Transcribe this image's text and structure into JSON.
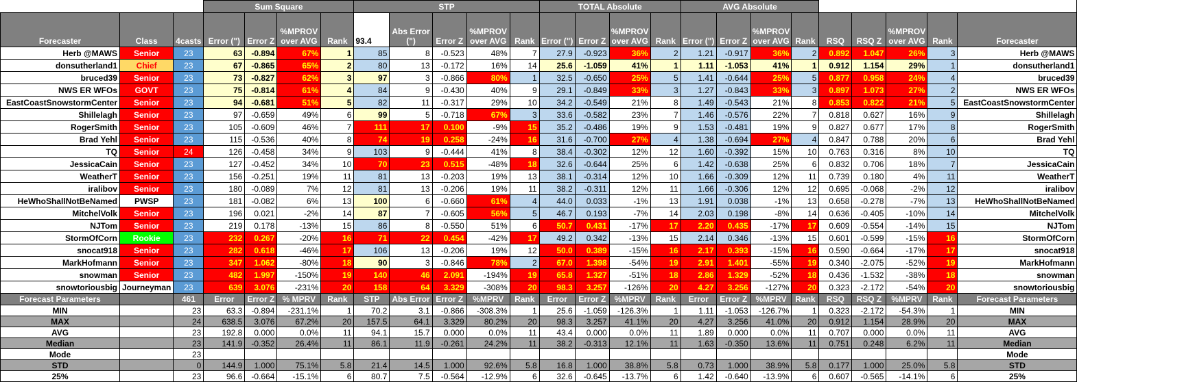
{
  "groups": {
    "sum_square": "Sum Square",
    "stp": "STP",
    "total_abs": "TOTAL Absolute",
    "avg_abs": "AVG Absolute"
  },
  "headers": {
    "forecaster": "Forecaster",
    "class": "Class",
    "casts": "4casts",
    "error": "Error (\")",
    "error_z": "Error Z",
    "mprov": "%MPROV over AVG",
    "rank": "Rank",
    "stp_value": "93.4",
    "abs_error": "Abs Error (\")",
    "rsq": "RSQ",
    "rsq_z": "RSQ Z"
  },
  "rows": [
    {
      "name": "Herb @MAWS",
      "cls": "Senior",
      "ct": "23",
      "ss": [
        "63",
        "-0.894",
        "67%",
        "1"
      ],
      "stp": [
        "85",
        "8",
        "-0.523",
        "48%",
        "7"
      ],
      "ta": [
        "27.9",
        "-0.923",
        "36%",
        "2"
      ],
      "aa": [
        "1.21",
        "-0.917",
        "36%",
        "2"
      ],
      "rs": [
        "0.892",
        "1.047",
        "26%",
        "3"
      ]
    },
    {
      "name": "donsutherland1",
      "cls": "Chief",
      "ct": "23",
      "ss": [
        "67",
        "-0.865",
        "65%",
        "2"
      ],
      "stp": [
        "80",
        "13",
        "-0.172",
        "16%",
        "14"
      ],
      "ta": [
        "25.6",
        "-1.059",
        "41%",
        "1"
      ],
      "aa": [
        "1.11",
        "-1.053",
        "41%",
        "1"
      ],
      "rs": [
        "0.912",
        "1.154",
        "29%",
        "1"
      ]
    },
    {
      "name": "bruced39",
      "cls": "Senior",
      "ct": "23",
      "ss": [
        "73",
        "-0.827",
        "62%",
        "3"
      ],
      "stp": [
        "97",
        "3",
        "-0.866",
        "80%",
        "1"
      ],
      "ta": [
        "32.5",
        "-0.650",
        "25%",
        "5"
      ],
      "aa": [
        "1.41",
        "-0.644",
        "25%",
        "5"
      ],
      "rs": [
        "0.877",
        "0.958",
        "24%",
        "4"
      ]
    },
    {
      "name": "NWS ER WFOs",
      "cls": "GOVT",
      "ct": "23",
      "ss": [
        "75",
        "-0.814",
        "61%",
        "4"
      ],
      "stp": [
        "84",
        "9",
        "-0.430",
        "40%",
        "9"
      ],
      "ta": [
        "29.1",
        "-0.849",
        "33%",
        "3"
      ],
      "aa": [
        "1.27",
        "-0.843",
        "33%",
        "3"
      ],
      "rs": [
        "0.897",
        "1.073",
        "27%",
        "2"
      ]
    },
    {
      "name": "EastCoastSnowstormCenter",
      "cls": "Senior",
      "ct": "23",
      "ss": [
        "94",
        "-0.681",
        "51%",
        "5"
      ],
      "stp": [
        "82",
        "11",
        "-0.317",
        "29%",
        "10"
      ],
      "ta": [
        "34.2",
        "-0.549",
        "21%",
        "8"
      ],
      "aa": [
        "1.49",
        "-0.543",
        "21%",
        "8"
      ],
      "rs": [
        "0.853",
        "0.822",
        "21%",
        "5"
      ]
    },
    {
      "name": "Shillelagh",
      "cls": "Senior",
      "ct": "23",
      "ss": [
        "97",
        "-0.659",
        "49%",
        "6"
      ],
      "stp": [
        "99",
        "5",
        "-0.718",
        "67%",
        "3"
      ],
      "ta": [
        "33.6",
        "-0.582",
        "23%",
        "7"
      ],
      "aa": [
        "1.46",
        "-0.576",
        "22%",
        "7"
      ],
      "rs": [
        "0.818",
        "0.627",
        "16%",
        "9"
      ]
    },
    {
      "name": "RogerSmith",
      "cls": "Senior",
      "ct": "23",
      "ss": [
        "105",
        "-0.609",
        "46%",
        "7"
      ],
      "stp": [
        "111",
        "17",
        "0.100",
        "-9%",
        "15"
      ],
      "ta": [
        "35.2",
        "-0.486",
        "19%",
        "9"
      ],
      "aa": [
        "1.53",
        "-0.481",
        "19%",
        "9"
      ],
      "rs": [
        "0.827",
        "0.677",
        "17%",
        "8"
      ]
    },
    {
      "name": "Brad Yehl",
      "cls": "Senior",
      "ct": "23",
      "ss": [
        "115",
        "-0.536",
        "40%",
        "8"
      ],
      "stp": [
        "74",
        "19",
        "0.258",
        "-24%",
        "16"
      ],
      "ta": [
        "31.6",
        "-0.700",
        "27%",
        "4"
      ],
      "aa": [
        "1.38",
        "-0.694",
        "27%",
        "4"
      ],
      "rs": [
        "0.847",
        "0.788",
        "20%",
        "6"
      ]
    },
    {
      "name": "TQ",
      "cls": "Senior",
      "ct": "24",
      "ss": [
        "126",
        "-0.458",
        "34%",
        "9"
      ],
      "stp": [
        "103",
        "9",
        "-0.444",
        "41%",
        "8"
      ],
      "ta": [
        "38.4",
        "-0.302",
        "12%",
        "12"
      ],
      "aa": [
        "1.60",
        "-0.392",
        "15%",
        "10"
      ],
      "rs": [
        "0.763",
        "0.316",
        "8%",
        "10"
      ]
    },
    {
      "name": "JessicaCain",
      "cls": "Senior",
      "ct": "23",
      "ss": [
        "127",
        "-0.452",
        "34%",
        "10"
      ],
      "stp": [
        "70",
        "23",
        "0.515",
        "-48%",
        "18"
      ],
      "ta": [
        "32.6",
        "-0.644",
        "25%",
        "6"
      ],
      "aa": [
        "1.42",
        "-0.638",
        "25%",
        "6"
      ],
      "rs": [
        "0.832",
        "0.706",
        "18%",
        "7"
      ]
    },
    {
      "name": "WeatherT",
      "cls": "Senior",
      "ct": "23",
      "ss": [
        "156",
        "-0.251",
        "19%",
        "11"
      ],
      "stp": [
        "81",
        "13",
        "-0.203",
        "19%",
        "13"
      ],
      "ta": [
        "38.1",
        "-0.314",
        "12%",
        "10"
      ],
      "aa": [
        "1.66",
        "-0.309",
        "12%",
        "11"
      ],
      "rs": [
        "0.739",
        "0.180",
        "4%",
        "11"
      ]
    },
    {
      "name": "iralibov",
      "cls": "Senior",
      "ct": "23",
      "ss": [
        "180",
        "-0.089",
        "7%",
        "12"
      ],
      "stp": [
        "81",
        "13",
        "-0.206",
        "19%",
        "11"
      ],
      "ta": [
        "38.2",
        "-0.311",
        "12%",
        "11"
      ],
      "aa": [
        "1.66",
        "-0.306",
        "12%",
        "12"
      ],
      "rs": [
        "0.695",
        "-0.068",
        "-2%",
        "12"
      ]
    },
    {
      "name": "HeWhoShallNotBeNamed",
      "cls": "PWSP",
      "ct": "23",
      "ss": [
        "181",
        "-0.082",
        "6%",
        "13"
      ],
      "stp": [
        "100",
        "6",
        "-0.660",
        "61%",
        "4"
      ],
      "ta": [
        "44.0",
        "0.033",
        "-1%",
        "13"
      ],
      "aa": [
        "1.91",
        "0.038",
        "-1%",
        "13"
      ],
      "rs": [
        "0.658",
        "-0.278",
        "-7%",
        "13"
      ]
    },
    {
      "name": "MitchelVolk",
      "cls": "Senior",
      "ct": "23",
      "ss": [
        "196",
        "0.021",
        "-2%",
        "14"
      ],
      "stp": [
        "87",
        "7",
        "-0.605",
        "56%",
        "5"
      ],
      "ta": [
        "46.7",
        "0.193",
        "-7%",
        "14"
      ],
      "aa": [
        "2.03",
        "0.198",
        "-8%",
        "14"
      ],
      "rs": [
        "0.636",
        "-0.405",
        "-10%",
        "14"
      ]
    },
    {
      "name": "NJTom",
      "cls": "Senior",
      "ct": "23",
      "ss": [
        "219",
        "0.178",
        "-13%",
        "15"
      ],
      "stp": [
        "86",
        "8",
        "-0.550",
        "51%",
        "6"
      ],
      "ta": [
        "50.7",
        "0.431",
        "-17%",
        "17"
      ],
      "aa": [
        "2.20",
        "0.435",
        "-17%",
        "17"
      ],
      "rs": [
        "0.609",
        "-0.554",
        "-14%",
        "15"
      ]
    },
    {
      "name": "StormOfCorn",
      "cls": "Rookie",
      "ct": "23",
      "ss": [
        "232",
        "0.267",
        "-20%",
        "16"
      ],
      "stp": [
        "71",
        "22",
        "0.454",
        "-42%",
        "17"
      ],
      "ta": [
        "49.2",
        "0.342",
        "-13%",
        "15"
      ],
      "aa": [
        "2.14",
        "0.346",
        "-13%",
        "15"
      ],
      "rs": [
        "0.601",
        "-0.599",
        "-15%",
        "16"
      ]
    },
    {
      "name": "snocat918",
      "cls": "Senior",
      "ct": "23",
      "ss": [
        "282",
        "0.618",
        "-46%",
        "17"
      ],
      "stp": [
        "106",
        "13",
        "-0.206",
        "19%",
        "12"
      ],
      "ta": [
        "50.0",
        "0.389",
        "-15%",
        "16"
      ],
      "aa": [
        "2.17",
        "0.393",
        "-15%",
        "16"
      ],
      "rs": [
        "0.590",
        "-0.664",
        "-17%",
        "17"
      ]
    },
    {
      "name": "MarkHofmann",
      "cls": "Senior",
      "ct": "23",
      "ss": [
        "347",
        "1.062",
        "-80%",
        "18"
      ],
      "stp": [
        "90",
        "3",
        "-0.846",
        "78%",
        "2"
      ],
      "ta": [
        "67.0",
        "1.398",
        "-54%",
        "19"
      ],
      "aa": [
        "2.91",
        "1.401",
        "-55%",
        "19"
      ],
      "rs": [
        "0.340",
        "-2.075",
        "-52%",
        "19"
      ]
    },
    {
      "name": "snowman",
      "cls": "Senior",
      "ct": "23",
      "ss": [
        "482",
        "1.997",
        "-150%",
        "19"
      ],
      "stp": [
        "140",
        "46",
        "2.091",
        "-194%",
        "19"
      ],
      "ta": [
        "65.8",
        "1.327",
        "-51%",
        "18"
      ],
      "aa": [
        "2.86",
        "1.329",
        "-52%",
        "18"
      ],
      "rs": [
        "0.436",
        "-1.532",
        "-38%",
        "18"
      ]
    },
    {
      "name": "snowtoriousbig",
      "cls": "Journeyman",
      "ct": "23",
      "ss": [
        "639",
        "3.076",
        "-231%",
        "20"
      ],
      "stp": [
        "158",
        "64",
        "3.329",
        "-308%",
        "20"
      ],
      "ta": [
        "98.3",
        "3.257",
        "-126%",
        "20"
      ],
      "aa": [
        "4.27",
        "3.256",
        "-127%",
        "20"
      ],
      "rs": [
        "0.323",
        "-2.172",
        "-54%",
        "20"
      ]
    }
  ],
  "params_header": {
    "label": "Forecast Parameters",
    "total": "461",
    "cols": [
      "Error",
      "Error Z",
      "% MPRV",
      "Rank",
      "STP",
      "Abs Error",
      "Error Z",
      "%MPRV",
      "Rank",
      "Error",
      "Error Z",
      "%MPRV",
      "Rank",
      "Error",
      "Error Z",
      "%MPRV",
      "Rank",
      "RSQ",
      "RSQ Z",
      "%MPRV",
      "Rank"
    ]
  },
  "params": [
    {
      "label": "MIN",
      "ct": "23",
      "vals": [
        "63.3",
        "-0.894",
        "-231.1%",
        "1",
        "70.2",
        "3.1",
        "-0.866",
        "-308.3%",
        "1",
        "25.6",
        "-1.059",
        "-126.3%",
        "1",
        "1.11",
        "-1.053",
        "-126.7%",
        "1",
        "0.323",
        "-2.172",
        "-54.3%",
        "1"
      ]
    },
    {
      "label": "MAX",
      "ct": "24",
      "vals": [
        "638.5",
        "3.076",
        "67.2%",
        "20",
        "157.5",
        "64.1",
        "3.329",
        "80.2%",
        "20",
        "98.3",
        "3.257",
        "41.1%",
        "20",
        "4.27",
        "3.256",
        "41.0%",
        "20",
        "0.912",
        "1.154",
        "28.9%",
        "20"
      ]
    },
    {
      "label": "AVG",
      "ct": "23",
      "vals": [
        "192.8",
        "0.000",
        "0.0%",
        "11",
        "94.1",
        "15.7",
        "0.000",
        "0.0%",
        "11",
        "43.4",
        "0.000",
        "0.0%",
        "11",
        "1.89",
        "0.000",
        "0.0%",
        "11",
        "0.707",
        "0.000",
        "0.0%",
        "11"
      ]
    },
    {
      "label": "Median",
      "ct": "23",
      "vals": [
        "141.9",
        "-0.352",
        "26.4%",
        "11",
        "86.1",
        "11.9",
        "-0.261",
        "24.2%",
        "11",
        "38.2",
        "-0.313",
        "12.1%",
        "11",
        "1.63",
        "-0.350",
        "13.6%",
        "11",
        "0.751",
        "0.248",
        "6.2%",
        "11"
      ]
    },
    {
      "label": "Mode",
      "ct": "23",
      "vals": [
        "",
        "",
        "",
        "",
        "",
        "",
        "",
        "",
        "",
        "",
        "",
        "",
        "",
        "",
        "",
        "",
        "",
        "",
        "",
        "",
        ""
      ]
    },
    {
      "label": "STD",
      "ct": "0",
      "vals": [
        "144.9",
        "1.000",
        "75.1%",
        "5.8",
        "21.4",
        "14.5",
        "1.000",
        "92.6%",
        "5.8",
        "16.8",
        "1.000",
        "38.8%",
        "5.8",
        "0.73",
        "1.000",
        "38.9%",
        "5.8",
        "0.177",
        "1.000",
        "25.0%",
        "5.8"
      ]
    },
    {
      "label": "25%",
      "ct": "23",
      "vals": [
        "96.6",
        "-0.664",
        "-15.1%",
        "6",
        "80.7",
        "7.5",
        "-0.564",
        "-12.9%",
        "6",
        "32.6",
        "-0.645",
        "-13.7%",
        "6",
        "1.42",
        "-0.640",
        "-13.9%",
        "6",
        "0.607",
        "-0.565",
        "-14.1%",
        "6"
      ]
    }
  ]
}
